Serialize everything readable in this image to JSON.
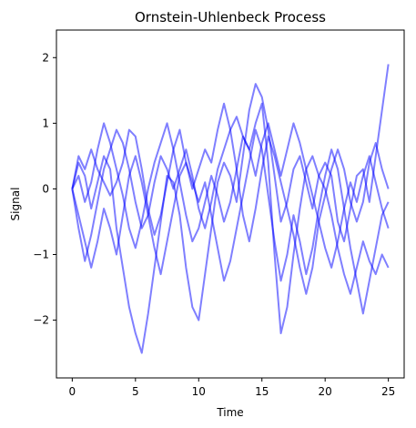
{
  "chart_data": {
    "type": "line",
    "title": "Ornstein-Uhlenbeck Process",
    "xlabel": "Time",
    "ylabel": "Signal",
    "xlim": [
      -1.25,
      26.25
    ],
    "ylim": [
      -2.88,
      2.42
    ],
    "xticks": [
      0,
      5,
      10,
      15,
      20,
      25
    ],
    "xtick_labels": [
      "0",
      "5",
      "10",
      "15",
      "20",
      "25"
    ],
    "yticks": [
      -2,
      -1,
      0,
      1,
      2
    ],
    "ytick_labels": [
      "−2",
      "−1",
      "0",
      "1",
      "2"
    ],
    "grid": false,
    "line_color": "#0000ff",
    "line_alpha": 0.5,
    "series": [
      {
        "x": [
          0,
          0.5,
          1,
          1.5,
          2,
          2.5,
          3,
          3.5,
          4,
          4.5,
          5,
          5.5,
          6,
          6.5,
          7,
          7.5,
          8,
          8.5,
          9,
          9.5,
          10,
          10.5,
          11,
          11.5,
          12,
          12.5,
          13,
          13.5,
          14,
          14.5,
          15,
          15.5,
          16,
          16.5,
          17,
          17.5,
          18,
          18.5,
          19,
          19.5,
          20,
          20.5,
          21,
          21.5,
          22,
          22.5,
          23,
          23.5,
          24,
          24.5,
          25
        ],
        "y": [
          0,
          0.4,
          0.2,
          -0.3,
          0.1,
          0.5,
          0.3,
          -0.6,
          -1.2,
          -1.8,
          -2.2,
          -2.5,
          -1.9,
          -1.2,
          -0.5,
          0.2,
          0.1,
          -0.4,
          -1.2,
          -1.8,
          -2.0,
          -1.3,
          -0.6,
          0.1,
          0.4,
          0.2,
          -0.2,
          0.5,
          1.2,
          1.6,
          1.4,
          0.9,
          0.2,
          -0.5,
          -0.2,
          0.3,
          0.5,
          0.1,
          -0.3,
          0.2,
          0.4,
          0.2,
          -0.5,
          -0.8,
          -0.3,
          0.2,
          0.3,
          -0.2,
          0.5,
          1.2,
          1.9
        ]
      },
      {
        "x": [
          0,
          0.5,
          1,
          1.5,
          2,
          2.5,
          3,
          3.5,
          4,
          4.5,
          5,
          5.5,
          6,
          6.5,
          7,
          7.5,
          8,
          8.5,
          9,
          9.5,
          10,
          10.5,
          11,
          11.5,
          12,
          12.5,
          13,
          13.5,
          14,
          14.5,
          15,
          15.5,
          16,
          16.5,
          17,
          17.5,
          18,
          18.5,
          19,
          19.5,
          20,
          20.5,
          21,
          21.5,
          22,
          22.5,
          23,
          23.5,
          24,
          24.5,
          25
        ],
        "y": [
          0,
          -0.6,
          -1.1,
          -0.7,
          -0.2,
          0.3,
          0.6,
          0.9,
          0.7,
          0.3,
          -0.2,
          -0.6,
          -0.4,
          0.1,
          0.5,
          0.3,
          0.0,
          0.3,
          0.6,
          0.2,
          -0.3,
          -0.6,
          -0.2,
          0.3,
          0.6,
          0.9,
          1.1,
          0.8,
          0.6,
          1.0,
          1.3,
          0.4,
          -1.0,
          -2.2,
          -1.8,
          -1.0,
          -0.3,
          0.3,
          0.5,
          0.2,
          0.0,
          -0.4,
          -0.9,
          -1.3,
          -1.6,
          -1.2,
          -0.8,
          -1.1,
          -1.3,
          -1.0,
          -1.2
        ]
      },
      {
        "x": [
          0,
          0.5,
          1,
          1.5,
          2,
          2.5,
          3,
          3.5,
          4,
          4.5,
          5,
          5.5,
          6,
          6.5,
          7,
          7.5,
          8,
          8.5,
          9,
          9.5,
          10,
          10.5,
          11,
          11.5,
          12,
          12.5,
          13,
          13.5,
          14,
          14.5,
          15,
          15.5,
          16,
          16.5,
          17,
          17.5,
          18,
          18.5,
          19,
          19.5,
          20,
          20.5,
          21,
          21.5,
          22,
          22.5,
          23,
          23.5,
          24,
          24.5,
          25
        ],
        "y": [
          0,
          0.5,
          0.3,
          0.6,
          0.3,
          0.1,
          -0.1,
          0.1,
          0.4,
          0.9,
          0.8,
          0.3,
          -0.3,
          -0.7,
          -0.4,
          0.1,
          0.6,
          0.9,
          0.4,
          0.0,
          0.3,
          0.6,
          0.4,
          0.9,
          1.3,
          0.9,
          0.3,
          -0.4,
          -0.8,
          -0.3,
          0.3,
          0.8,
          0.5,
          0.1,
          -0.3,
          -0.7,
          -1.2,
          -1.6,
          -1.2,
          -0.5,
          -0.1,
          0.3,
          0.6,
          0.3,
          -0.2,
          -0.5,
          -0.2,
          0.4,
          0.7,
          0.3,
          0.0
        ]
      },
      {
        "x": [
          0,
          0.5,
          1,
          1.5,
          2,
          2.5,
          3,
          3.5,
          4,
          4.5,
          5,
          5.5,
          6,
          6.5,
          7,
          7.5,
          8,
          8.5,
          9,
          9.5,
          10,
          10.5,
          11,
          11.5,
          12,
          12.5,
          13,
          13.5,
          14,
          14.5,
          15,
          15.5,
          16,
          16.5,
          17,
          17.5,
          18,
          18.5,
          19,
          19.5,
          20,
          20.5,
          21,
          21.5,
          22,
          22.5,
          23,
          23.5,
          24,
          24.5,
          25
        ],
        "y": [
          0,
          -0.4,
          -0.8,
          -1.2,
          -0.8,
          -0.3,
          -0.6,
          -1.0,
          -0.4,
          0.2,
          0.5,
          0.1,
          -0.4,
          -0.9,
          -1.3,
          -0.8,
          -0.3,
          0.2,
          0.4,
          0.1,
          -0.2,
          0.1,
          -0.4,
          -0.9,
          -1.4,
          -1.1,
          -0.6,
          -0.1,
          0.4,
          0.9,
          0.6,
          -0.1,
          -0.8,
          -1.4,
          -1.0,
          -0.4,
          -0.8,
          -1.3,
          -0.9,
          -0.3,
          0.2,
          0.6,
          0.3,
          -0.3,
          -0.9,
          -1.4,
          -1.9,
          -1.4,
          -0.9,
          -0.4,
          -0.2
        ]
      },
      {
        "x": [
          0,
          0.5,
          1,
          1.5,
          2,
          2.5,
          3,
          3.5,
          4,
          4.5,
          5,
          5.5,
          6,
          6.5,
          7,
          7.5,
          8,
          8.5,
          9,
          9.5,
          10,
          10.5,
          11,
          11.5,
          12,
          12.5,
          13,
          13.5,
          14,
          14.5,
          15,
          15.5,
          16,
          16.5,
          17,
          17.5,
          18,
          18.5,
          19,
          19.5,
          20,
          20.5,
          21,
          21.5,
          22,
          22.5,
          23,
          23.5,
          24,
          24.5,
          25
        ],
        "y": [
          0,
          0.2,
          -0.2,
          0.1,
          0.6,
          1.0,
          0.7,
          0.3,
          -0.1,
          -0.6,
          -0.9,
          -0.5,
          0.0,
          0.4,
          0.7,
          1.0,
          0.6,
          0.1,
          -0.4,
          -0.8,
          -0.6,
          -0.2,
          0.2,
          -0.1,
          -0.5,
          -0.2,
          0.3,
          0.8,
          0.6,
          0.2,
          0.7,
          1.0,
          0.6,
          0.2,
          0.6,
          1.0,
          0.7,
          0.3,
          -0.1,
          -0.5,
          -0.9,
          -1.2,
          -0.8,
          -0.3,
          0.1,
          -0.2,
          0.2,
          0.5,
          0.1,
          -0.3,
          -0.6
        ]
      }
    ]
  }
}
